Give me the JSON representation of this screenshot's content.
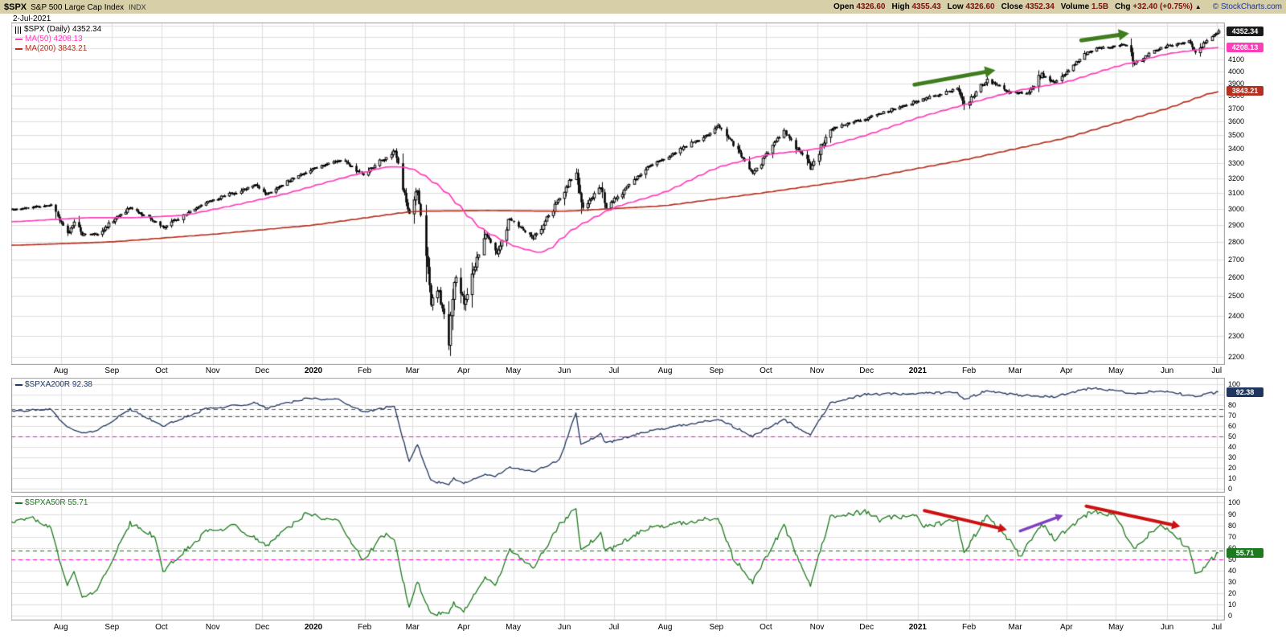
{
  "header": {
    "symbol": "$SPX",
    "title": "S&P 500 Large Cap Index",
    "exchange": "INDX",
    "date": "2-Jul-2021",
    "watermark": "© StockCharts.com",
    "direction_icon": "▲",
    "quote_fields": [
      {
        "label": "Open",
        "value": "4326.60"
      },
      {
        "label": "High",
        "value": "4355.43"
      },
      {
        "label": "Low",
        "value": "4326.60"
      },
      {
        "label": "Close",
        "value": "4352.34"
      },
      {
        "label": "Volume",
        "value": "1.5B"
      },
      {
        "label": "Chg",
        "value": "+32.40 (+0.75%)"
      }
    ]
  },
  "legends": {
    "spx": "$SPX (Daily) 4352.34",
    "ma50": "MA(50) 4208.13",
    "ma200": "MA(200) 3843.21",
    "a200r": "$SPXA200R 92.38",
    "a50r": "$SPXA50R 55.71"
  },
  "colors": {
    "header_bg": "#d6cfa8",
    "grid": "#dedede",
    "border": "#9a9a9a",
    "candle": "#000000",
    "ma50": "#ff3dbb",
    "ma200": "#b5301f",
    "a200r": "#21365f",
    "a50r": "#1e7a1e",
    "watermark": "#223399",
    "box_close": "#1a1a1a",
    "arrow_green": "#3f7d1f",
    "arrow_red": "#cc1111",
    "arrow_purple": "#8040c0"
  },
  "x_axis": {
    "range": [
      "2019-07-02",
      "2021-07-06"
    ],
    "last_day": "2021-07-02",
    "labels": [
      {
        "t": "2019-08-01",
        "label": "Aug"
      },
      {
        "t": "2019-09-01",
        "label": "Sep"
      },
      {
        "t": "2019-10-01",
        "label": "Oct"
      },
      {
        "t": "2019-11-01",
        "label": "Nov"
      },
      {
        "t": "2019-12-01",
        "label": "Dec"
      },
      {
        "t": "2020-01-01",
        "label": "2020",
        "bold": true
      },
      {
        "t": "2020-02-01",
        "label": "Feb"
      },
      {
        "t": "2020-03-01",
        "label": "Mar"
      },
      {
        "t": "2020-04-01",
        "label": "Apr"
      },
      {
        "t": "2020-05-01",
        "label": "May"
      },
      {
        "t": "2020-06-01",
        "label": "Jun"
      },
      {
        "t": "2020-07-01",
        "label": "Jul"
      },
      {
        "t": "2020-08-01",
        "label": "Aug"
      },
      {
        "t": "2020-09-01",
        "label": "Sep"
      },
      {
        "t": "2020-10-01",
        "label": "Oct"
      },
      {
        "t": "2020-11-01",
        "label": "Nov"
      },
      {
        "t": "2020-12-01",
        "label": "Dec"
      },
      {
        "t": "2021-01-01",
        "label": "2021",
        "bold": true
      },
      {
        "t": "2021-02-01",
        "label": "Feb"
      },
      {
        "t": "2021-03-01",
        "label": "Mar"
      },
      {
        "t": "2021-04-01",
        "label": "Apr"
      },
      {
        "t": "2021-05-01",
        "label": "May"
      },
      {
        "t": "2021-06-01",
        "label": "Jun"
      },
      {
        "t": "2021-07-01",
        "label": "Jul"
      }
    ]
  },
  "chart_data": [
    {
      "type": "candlestick",
      "name": "$SPX (Daily)",
      "scale": "log",
      "ylim": [
        2165,
        4430
      ],
      "last": 4352.34,
      "y_labels": [
        4100,
        4000,
        3900,
        3800,
        3700,
        3600,
        3500,
        3400,
        3300,
        3200,
        3100,
        3000,
        2900,
        2800,
        2700,
        2600,
        2500,
        2400,
        2300,
        2200
      ],
      "close_anchors": [
        [
          "2019-07-03",
          2996
        ],
        [
          "2019-07-26",
          3026
        ],
        [
          "2019-08-05",
          2845
        ],
        [
          "2019-08-09",
          2919
        ],
        [
          "2019-08-14",
          2841
        ],
        [
          "2019-08-23",
          2847
        ],
        [
          "2019-09-12",
          3010
        ],
        [
          "2019-10-02",
          2888
        ],
        [
          "2019-10-28",
          3039
        ],
        [
          "2019-11-27",
          3154
        ],
        [
          "2019-12-03",
          3093
        ],
        [
          "2019-12-27",
          3240
        ],
        [
          "2020-01-17",
          3330
        ],
        [
          "2020-01-31",
          3226
        ],
        [
          "2020-02-19",
          3386
        ],
        [
          "2020-02-28",
          2954
        ],
        [
          "2020-03-04",
          3130
        ],
        [
          "2020-03-12",
          2481
        ],
        [
          "2020-03-17",
          2529
        ],
        [
          "2020-03-23",
          2237
        ],
        [
          "2020-03-26",
          2630
        ],
        [
          "2020-04-01",
          2470
        ],
        [
          "2020-04-14",
          2846
        ],
        [
          "2020-04-21",
          2736
        ],
        [
          "2020-04-29",
          2940
        ],
        [
          "2020-05-13",
          2820
        ],
        [
          "2020-06-08",
          3232
        ],
        [
          "2020-06-11",
          3002
        ],
        [
          "2020-06-23",
          3131
        ],
        [
          "2020-06-26",
          3009
        ],
        [
          "2020-07-22",
          3276
        ],
        [
          "2020-08-28",
          3508
        ],
        [
          "2020-09-02",
          3581
        ],
        [
          "2020-09-23",
          3237
        ],
        [
          "2020-10-12",
          3534
        ],
        [
          "2020-10-28",
          3271
        ],
        [
          "2020-11-09",
          3550
        ],
        [
          "2020-11-30",
          3622
        ],
        [
          "2020-12-31",
          3756
        ],
        [
          "2021-01-25",
          3855
        ],
        [
          "2021-01-29",
          3714
        ],
        [
          "2021-02-12",
          3935
        ],
        [
          "2021-02-25",
          3829
        ],
        [
          "2021-03-08",
          3821
        ],
        [
          "2021-03-17",
          3974
        ],
        [
          "2021-03-25",
          3909
        ],
        [
          "2021-04-16",
          4185
        ],
        [
          "2021-05-07",
          4233
        ],
        [
          "2021-05-12",
          4063
        ],
        [
          "2021-05-28",
          4204
        ],
        [
          "2021-06-14",
          4255
        ],
        [
          "2021-06-18",
          4166
        ],
        [
          "2021-07-02",
          4352.34
        ]
      ],
      "ma50": {
        "period": 50,
        "last": 4208.13,
        "points": [
          [
            "2019-07-03",
            2920
          ],
          [
            "2019-08-15",
            2945
          ],
          [
            "2019-09-15",
            2945
          ],
          [
            "2019-10-15",
            2960
          ],
          [
            "2019-11-15",
            3025
          ],
          [
            "2019-12-15",
            3095
          ],
          [
            "2020-01-15",
            3190
          ],
          [
            "2020-02-15",
            3280
          ],
          [
            "2020-03-01",
            3270
          ],
          [
            "2020-03-20",
            3125
          ],
          [
            "2020-04-10",
            2885
          ],
          [
            "2020-05-01",
            2775
          ],
          [
            "2020-05-20",
            2730
          ],
          [
            "2020-06-05",
            2870
          ],
          [
            "2020-07-01",
            3010
          ],
          [
            "2020-08-01",
            3105
          ],
          [
            "2020-09-01",
            3270
          ],
          [
            "2020-10-01",
            3360
          ],
          [
            "2020-11-01",
            3400
          ],
          [
            "2020-12-01",
            3500
          ],
          [
            "2021-01-01",
            3630
          ],
          [
            "2021-02-01",
            3740
          ],
          [
            "2021-03-01",
            3840
          ],
          [
            "2021-04-01",
            3910
          ],
          [
            "2021-05-01",
            4040
          ],
          [
            "2021-06-01",
            4150
          ],
          [
            "2021-07-02",
            4208.13
          ]
        ]
      },
      "ma200": {
        "period": 200,
        "last": 3843.21,
        "points": [
          [
            "2019-07-03",
            2780
          ],
          [
            "2019-09-01",
            2800
          ],
          [
            "2019-11-01",
            2845
          ],
          [
            "2020-01-01",
            2900
          ],
          [
            "2020-03-01",
            2985
          ],
          [
            "2020-04-15",
            2990
          ],
          [
            "2020-06-01",
            2985
          ],
          [
            "2020-08-01",
            3020
          ],
          [
            "2020-10-01",
            3105
          ],
          [
            "2020-12-01",
            3200
          ],
          [
            "2021-02-01",
            3330
          ],
          [
            "2021-04-01",
            3480
          ],
          [
            "2021-06-01",
            3700
          ],
          [
            "2021-07-02",
            3843.21
          ]
        ]
      },
      "annotations": [
        {
          "from": [
            "2020-12-30",
            3890
          ],
          "to": [
            "2021-02-17",
            4010
          ],
          "color": "#3f7d1f",
          "width": 5
        },
        {
          "from": [
            "2021-04-10",
            4268
          ],
          "to": [
            "2021-05-09",
            4330
          ],
          "color": "#3f7d1f",
          "width": 5
        }
      ],
      "boxes": [
        {
          "value": 4352.34,
          "text": "4352.34",
          "color": "#1a1a1a"
        },
        {
          "value": 4208.13,
          "text": "4208.13",
          "color": "#ff3dbb"
        },
        {
          "value": 3843.21,
          "text": "3843.21",
          "color": "#b5301f"
        }
      ]
    },
    {
      "type": "line",
      "name": "$SPXA200R",
      "last": 92.38,
      "color": "#21365f",
      "noise": 2.2,
      "ylim": [
        0,
        100
      ],
      "y_labels": [
        100,
        90,
        80,
        70,
        60,
        50,
        40,
        30,
        20,
        10,
        0
      ],
      "hlines": [
        {
          "value": 50,
          "color": "#ff00cc"
        },
        {
          "value": 76,
          "color": "#555555"
        },
        {
          "value": 69,
          "color": "#555555"
        }
      ],
      "points": [
        [
          "2019-07-03",
          74
        ],
        [
          "2019-07-26",
          76
        ],
        [
          "2019-08-05",
          58
        ],
        [
          "2019-08-14",
          54
        ],
        [
          "2019-08-23",
          55
        ],
        [
          "2019-09-12",
          76
        ],
        [
          "2019-10-02",
          60
        ],
        [
          "2019-10-28",
          76
        ],
        [
          "2019-11-27",
          82
        ],
        [
          "2019-12-03",
          77
        ],
        [
          "2019-12-27",
          86
        ],
        [
          "2020-01-17",
          85
        ],
        [
          "2020-01-31",
          73
        ],
        [
          "2020-02-19",
          79
        ],
        [
          "2020-02-28",
          25
        ],
        [
          "2020-03-04",
          42
        ],
        [
          "2020-03-12",
          8
        ],
        [
          "2020-03-23",
          3
        ],
        [
          "2020-03-26",
          10
        ],
        [
          "2020-04-01",
          5
        ],
        [
          "2020-04-14",
          14
        ],
        [
          "2020-04-21",
          12
        ],
        [
          "2020-04-29",
          20
        ],
        [
          "2020-05-13",
          16
        ],
        [
          "2020-05-29",
          27
        ],
        [
          "2020-06-08",
          73
        ],
        [
          "2020-06-11",
          42
        ],
        [
          "2020-06-23",
          52
        ],
        [
          "2020-06-26",
          43
        ],
        [
          "2020-07-22",
          55
        ],
        [
          "2020-08-28",
          65
        ],
        [
          "2020-09-02",
          67
        ],
        [
          "2020-09-23",
          50
        ],
        [
          "2020-10-12",
          66
        ],
        [
          "2020-10-28",
          51
        ],
        [
          "2020-11-09",
          82
        ],
        [
          "2020-11-30",
          90
        ],
        [
          "2020-12-31",
          91
        ],
        [
          "2021-01-25",
          92
        ],
        [
          "2021-01-29",
          85
        ],
        [
          "2021-02-12",
          94
        ],
        [
          "2021-03-04",
          89
        ],
        [
          "2021-03-25",
          88
        ],
        [
          "2021-04-16",
          96
        ],
        [
          "2021-05-12",
          91
        ],
        [
          "2021-05-28",
          94
        ],
        [
          "2021-06-18",
          88
        ],
        [
          "2021-06-24",
          90
        ],
        [
          "2021-07-02",
          92.38
        ]
      ],
      "boxes": [
        {
          "value": 92.38,
          "text": "92.38",
          "color": "#21365f"
        }
      ]
    },
    {
      "type": "line",
      "name": "$SPXA50R",
      "last": 55.71,
      "color": "#1e7a1e",
      "noise": 4.5,
      "ylim": [
        0,
        100
      ],
      "y_labels": [
        100,
        90,
        80,
        70,
        60,
        50,
        40,
        30,
        20,
        10,
        0
      ],
      "hlines": [
        {
          "value": 57.5,
          "color": "#008000"
        },
        {
          "value": 50,
          "color": "#ff00cc"
        }
      ],
      "points": [
        [
          "2019-07-03",
          82
        ],
        [
          "2019-07-12",
          88
        ],
        [
          "2019-07-26",
          78
        ],
        [
          "2019-08-05",
          25
        ],
        [
          "2019-08-09",
          40
        ],
        [
          "2019-08-14",
          18
        ],
        [
          "2019-08-23",
          22
        ],
        [
          "2019-09-12",
          82
        ],
        [
          "2019-09-27",
          70
        ],
        [
          "2019-10-02",
          40
        ],
        [
          "2019-10-28",
          74
        ],
        [
          "2019-11-15",
          80
        ],
        [
          "2019-12-03",
          62
        ],
        [
          "2019-12-27",
          90
        ],
        [
          "2020-01-17",
          83
        ],
        [
          "2020-01-31",
          48
        ],
        [
          "2020-02-12",
          72
        ],
        [
          "2020-02-19",
          68
        ],
        [
          "2020-02-28",
          6
        ],
        [
          "2020-03-04",
          30
        ],
        [
          "2020-03-12",
          2
        ],
        [
          "2020-03-23",
          1
        ],
        [
          "2020-03-26",
          12
        ],
        [
          "2020-04-01",
          4
        ],
        [
          "2020-04-14",
          35
        ],
        [
          "2020-04-21",
          28
        ],
        [
          "2020-04-29",
          58
        ],
        [
          "2020-05-13",
          42
        ],
        [
          "2020-05-29",
          80
        ],
        [
          "2020-06-08",
          96
        ],
        [
          "2020-06-11",
          58
        ],
        [
          "2020-06-23",
          72
        ],
        [
          "2020-06-26",
          56
        ],
        [
          "2020-07-22",
          78
        ],
        [
          "2020-08-12",
          82
        ],
        [
          "2020-08-28",
          86
        ],
        [
          "2020-09-02",
          88
        ],
        [
          "2020-09-11",
          52
        ],
        [
          "2020-09-23",
          30
        ],
        [
          "2020-10-12",
          80
        ],
        [
          "2020-10-28",
          26
        ],
        [
          "2020-11-09",
          88
        ],
        [
          "2020-11-30",
          92
        ],
        [
          "2020-12-09",
          85
        ],
        [
          "2020-12-31",
          90
        ],
        [
          "2021-01-04",
          78
        ],
        [
          "2021-01-25",
          85
        ],
        [
          "2021-01-29",
          55
        ],
        [
          "2021-02-12",
          90
        ],
        [
          "2021-02-25",
          68
        ],
        [
          "2021-03-04",
          52
        ],
        [
          "2021-03-17",
          82
        ],
        [
          "2021-03-25",
          68
        ],
        [
          "2021-04-16",
          92
        ],
        [
          "2021-04-30",
          88
        ],
        [
          "2021-05-12",
          60
        ],
        [
          "2021-05-28",
          82
        ],
        [
          "2021-06-14",
          60
        ],
        [
          "2021-06-18",
          38
        ],
        [
          "2021-06-24",
          42
        ],
        [
          "2021-06-28",
          50
        ],
        [
          "2021-07-02",
          55.71
        ]
      ],
      "annotations": [
        {
          "from": [
            "2021-01-05",
            93
          ],
          "to": [
            "2021-02-24",
            76
          ],
          "color": "#cc1111",
          "width": 4
        },
        {
          "from": [
            "2021-03-04",
            75
          ],
          "to": [
            "2021-03-30",
            89
          ],
          "color": "#8040c0",
          "width": 3.5
        },
        {
          "from": [
            "2021-04-13",
            97
          ],
          "to": [
            "2021-06-09",
            79
          ],
          "color": "#cc1111",
          "width": 4
        }
      ],
      "boxes": [
        {
          "value": 55.71,
          "text": "55.71",
          "color": "#1e7a1e"
        }
      ]
    }
  ]
}
